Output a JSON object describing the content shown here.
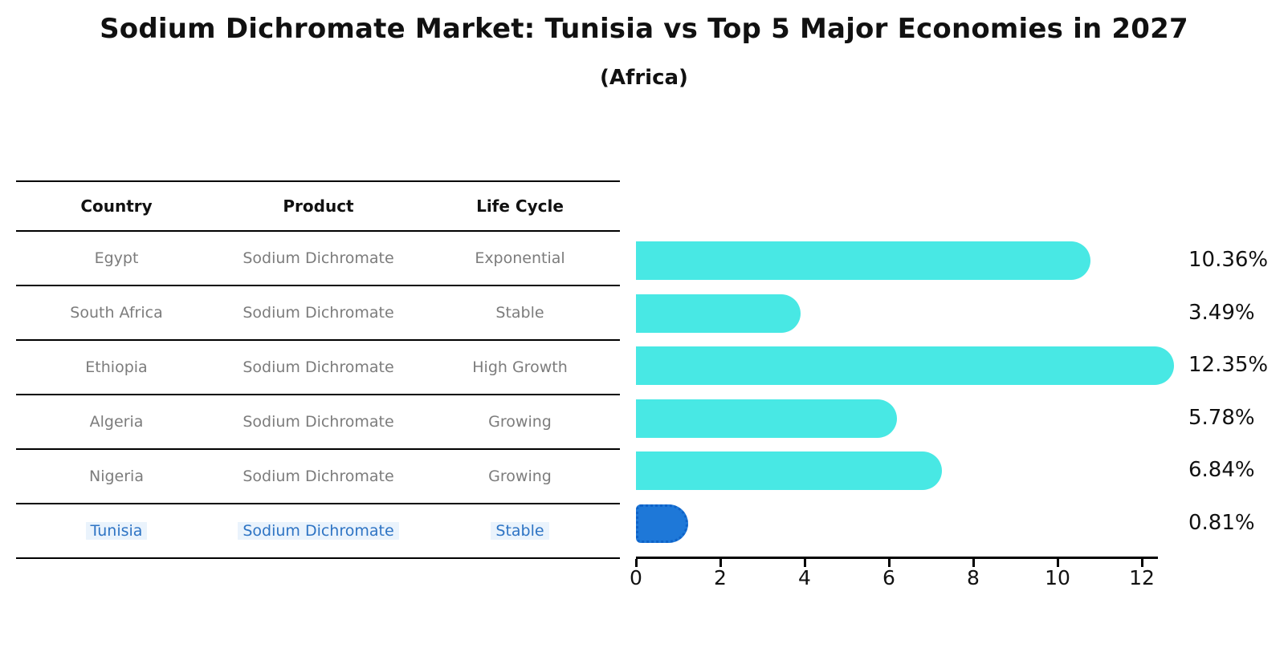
{
  "header": {
    "title": "Sodium Dichromate Market: Tunisia vs Top 5 Major Economies in 2027",
    "subtitle": "(Africa)"
  },
  "table": {
    "columns": [
      "Country",
      "Product",
      "Life Cycle"
    ],
    "rows": [
      {
        "country": "Egypt",
        "product": "Sodium Dichromate",
        "life_cycle": "Exponential"
      },
      {
        "country": "South Africa",
        "product": "Sodium Dichromate",
        "life_cycle": "Stable"
      },
      {
        "country": "Ethiopia",
        "product": "Sodium Dichromate",
        "life_cycle": "High Growth"
      },
      {
        "country": "Algeria",
        "product": "Sodium Dichromate",
        "life_cycle": "Growing"
      },
      {
        "country": "Nigeria",
        "product": "Sodium Dichromate",
        "life_cycle": "Growing"
      },
      {
        "country": "Tunisia",
        "product": "Sodium Dichromate",
        "life_cycle": "Stable"
      }
    ],
    "highlight_row": "Tunisia"
  },
  "chart_data": {
    "type": "bar",
    "orientation": "horizontal",
    "title": "Sodium Dichromate Market: Tunisia vs Top 5 Major Economies in 2027 (Africa)",
    "categories": [
      "Egypt",
      "South Africa",
      "Ethiopia",
      "Algeria",
      "Nigeria",
      "Tunisia"
    ],
    "values": [
      10.36,
      3.49,
      12.35,
      5.78,
      6.84,
      0.81
    ],
    "value_labels": [
      "10.36%",
      "3.49%",
      "12.35%",
      "5.78%",
      "6.84%",
      "0.81%"
    ],
    "unit": "%",
    "x_ticks": [
      0,
      2,
      4,
      6,
      8,
      10,
      12
    ],
    "xlim": [
      0,
      12.35
    ],
    "grid": false,
    "legend": "none",
    "highlight_index": 5,
    "bar_color": "#48e8e4",
    "highlight_color": "#1e78d8",
    "highlight_border_color": "#0e62c8"
  },
  "colors": {
    "background": "#ffffff",
    "title_text": "#111111",
    "table_text": "#7c7c7c",
    "table_line": "#000000",
    "highlight_text": "#2e74c4"
  }
}
